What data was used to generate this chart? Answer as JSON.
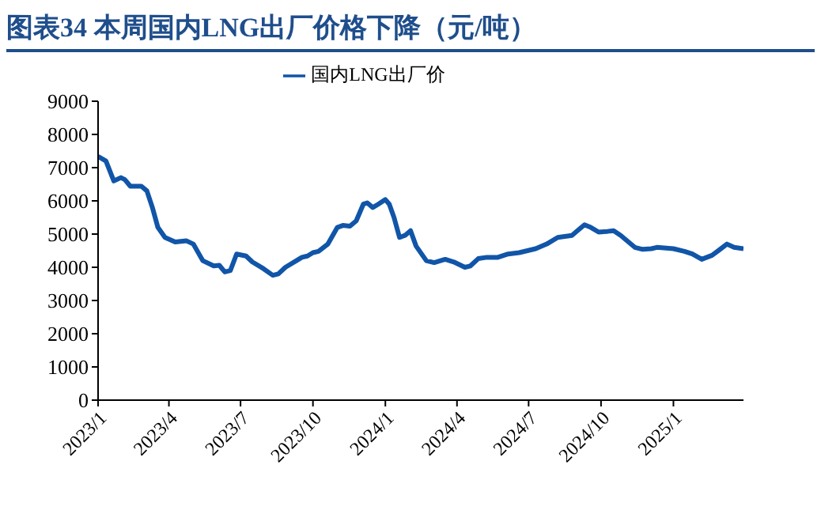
{
  "chart_data": {
    "type": "line",
    "title": "图表34 本周国内LNG出厂价格下降（元/吨）",
    "x": [
      "2023-01-01",
      "2023-01-11",
      "2023-01-21",
      "2023-01-30",
      "2023-02-04",
      "2023-02-11",
      "2023-02-25",
      "2023-03-04",
      "2023-03-11",
      "2023-03-18",
      "2023-03-27",
      "2023-04-09",
      "2023-04-23",
      "2023-05-02",
      "2023-05-14",
      "2023-05-28",
      "2023-06-04",
      "2023-06-11",
      "2023-06-18",
      "2023-06-26",
      "2023-07-08",
      "2023-07-16",
      "2023-07-30",
      "2023-08-11",
      "2023-08-18",
      "2023-08-27",
      "2023-09-10",
      "2023-09-17",
      "2023-09-24",
      "2023-10-01",
      "2023-10-08",
      "2023-10-20",
      "2023-11-01",
      "2023-11-08",
      "2023-11-17",
      "2023-11-25",
      "2023-12-04",
      "2023-12-09",
      "2023-12-16",
      "2023-12-23",
      "2024-01-01",
      "2024-01-06",
      "2024-01-12",
      "2024-01-19",
      "2024-01-26",
      "2024-02-02",
      "2024-02-09",
      "2024-02-22",
      "2024-03-03",
      "2024-03-17",
      "2024-03-28",
      "2024-04-11",
      "2024-04-18",
      "2024-04-28",
      "2024-05-09",
      "2024-05-23",
      "2024-06-05",
      "2024-06-19",
      "2024-07-10",
      "2024-07-24",
      "2024-08-07",
      "2024-08-25",
      "2024-09-01",
      "2024-09-10",
      "2024-09-18",
      "2024-09-28",
      "2024-10-09",
      "2024-10-17",
      "2024-10-26",
      "2024-11-13",
      "2024-11-23",
      "2024-12-04",
      "2024-12-11",
      "2025-01-01",
      "2025-01-15",
      "2025-01-25",
      "2025-02-06",
      "2025-02-19",
      "2025-02-27",
      "2025-03-10",
      "2025-03-19",
      "2025-03-31"
    ],
    "series": [
      {
        "name": "国内LNG出厂价",
        "color": "#1155a8",
        "values": [
          7340,
          7200,
          6600,
          6700,
          6640,
          6440,
          6440,
          6300,
          5800,
          5200,
          4900,
          4760,
          4800,
          4700,
          4200,
          4040,
          4060,
          3860,
          3900,
          4400,
          4340,
          4160,
          3960,
          3760,
          3800,
          4000,
          4200,
          4300,
          4340,
          4440,
          4480,
          4700,
          5200,
          5260,
          5240,
          5400,
          5900,
          5940,
          5800,
          5900,
          6040,
          5900,
          5500,
          4900,
          4960,
          5100,
          4640,
          4200,
          4140,
          4240,
          4160,
          4000,
          4040,
          4260,
          4300,
          4300,
          4400,
          4440,
          4560,
          4700,
          4900,
          4960,
          5100,
          5280,
          5200,
          5060,
          5080,
          5100,
          4960,
          4600,
          4540,
          4560,
          4600,
          4560,
          4480,
          4400,
          4240,
          4360,
          4500,
          4700,
          4600,
          4560
        ]
      }
    ],
    "xlim": [
      "2023-01-01",
      "2025-03-31"
    ],
    "xticks": [
      {
        "value": "2023-01-01",
        "label": "2023/1"
      },
      {
        "value": "2023-04-01",
        "label": "2023/4"
      },
      {
        "value": "2023-07-01",
        "label": "2023/7"
      },
      {
        "value": "2023-10-01",
        "label": "2023/10"
      },
      {
        "value": "2024-01-01",
        "label": "2024/1"
      },
      {
        "value": "2024-04-01",
        "label": "2024/4"
      },
      {
        "value": "2024-07-01",
        "label": "2024/7"
      },
      {
        "value": "2024-10-01",
        "label": "2024/10"
      },
      {
        "value": "2025-01-01",
        "label": "2025/1"
      }
    ],
    "ylim": [
      0,
      9000
    ],
    "yticks": [
      0,
      1000,
      2000,
      3000,
      4000,
      5000,
      6000,
      7000,
      8000,
      9000
    ],
    "grid": false,
    "legend": "top",
    "marker": "none",
    "line_style": "solid"
  }
}
